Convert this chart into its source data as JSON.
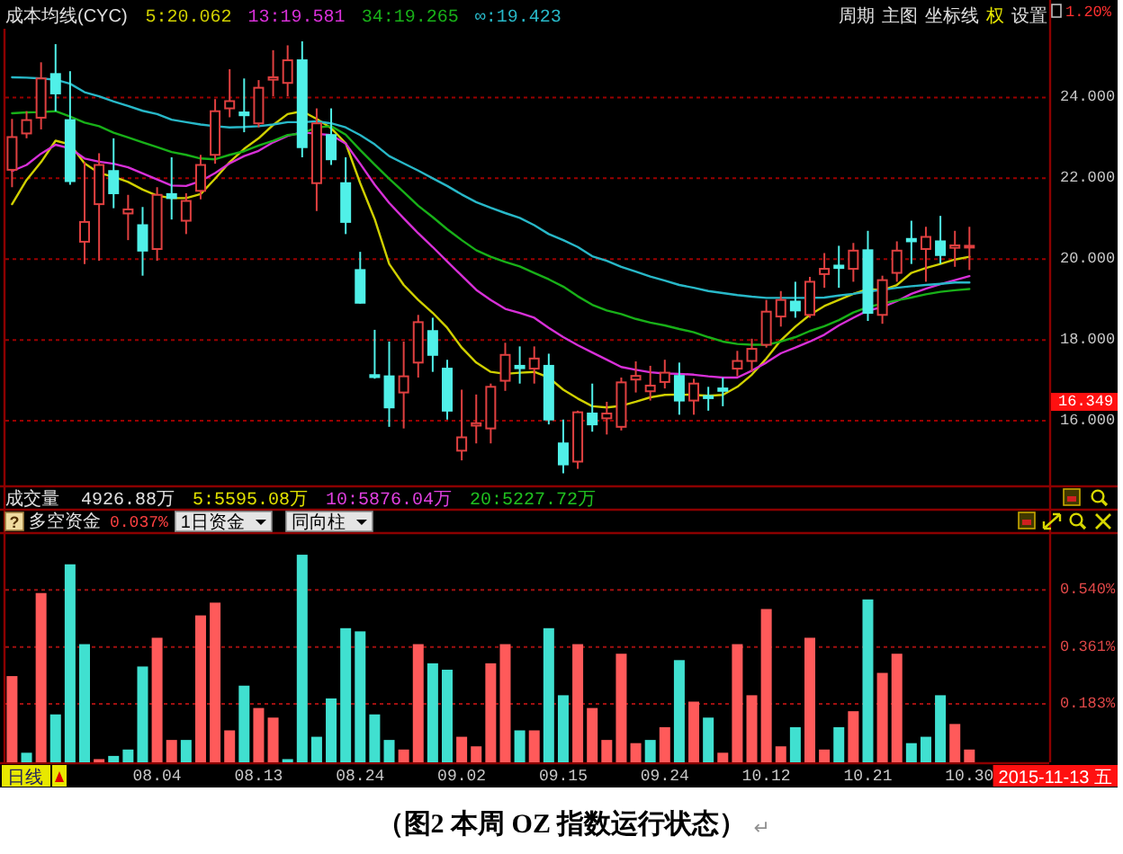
{
  "chart_data": [
    {
      "type": "candlestick",
      "title": "成本均线(CYC)",
      "legend": "top left",
      "grid": "y",
      "categories": [
        null,
        null,
        null,
        null,
        null,
        null,
        null,
        null,
        null,
        null,
        null,
        null,
        null,
        null,
        null,
        null,
        null,
        null,
        null,
        null,
        null,
        null,
        null,
        null,
        null,
        null,
        null,
        null,
        null,
        null,
        null,
        null,
        null,
        null,
        null,
        null,
        null,
        null,
        null,
        null,
        null,
        null,
        null,
        null,
        null,
        null,
        null,
        null,
        null,
        null,
        null,
        null,
        null,
        null,
        null,
        null,
        null,
        null,
        null,
        null,
        null,
        null,
        null,
        null,
        null,
        null,
        null
      ],
      "ohlc": [
        [
          22.21,
          23.47,
          21.78,
          23.02
        ],
        [
          23.11,
          23.66,
          22.99,
          23.44
        ],
        [
          23.5,
          24.87,
          23.21,
          24.47
        ],
        [
          24.58,
          25.32,
          23.66,
          24.1
        ],
        [
          23.44,
          24.65,
          21.84,
          21.93
        ],
        [
          20.43,
          22.4,
          19.88,
          20.92
        ],
        [
          21.36,
          22.62,
          19.96,
          22.33
        ],
        [
          22.18,
          22.99,
          21.26,
          21.63
        ],
        [
          21.13,
          21.59,
          20.47,
          21.23
        ],
        [
          20.84,
          21.29,
          19.59,
          20.21
        ],
        [
          20.25,
          21.78,
          19.96,
          21.59
        ],
        [
          21.61,
          22.52,
          20.98,
          21.51
        ],
        [
          20.95,
          21.63,
          20.62,
          21.44
        ],
        [
          21.69,
          22.58,
          21.48,
          22.33
        ],
        [
          22.58,
          23.96,
          22.36,
          23.66
        ],
        [
          23.73,
          24.7,
          23.51,
          23.91
        ],
        [
          23.63,
          24.47,
          23.14,
          23.56
        ],
        [
          23.36,
          24.43,
          23.26,
          24.24
        ],
        [
          24.44,
          25.17,
          24.03,
          24.5
        ],
        [
          24.36,
          25.29,
          24.03,
          24.92
        ],
        [
          24.92,
          25.39,
          22.52,
          22.77
        ],
        [
          21.88,
          23.73,
          21.19,
          23.36
        ],
        [
          23.07,
          23.73,
          22.33,
          22.47
        ],
        [
          21.88,
          22.52,
          20.62,
          20.92
        ],
        [
          19.73,
          20.18,
          18.9,
          18.92
        ],
        [
          17.13,
          18.25,
          17.04,
          17.08
        ],
        [
          17.1,
          17.96,
          15.85,
          16.33
        ],
        [
          16.7,
          17.96,
          15.81,
          17.1
        ],
        [
          17.44,
          18.62,
          17.07,
          18.44
        ],
        [
          18.22,
          18.55,
          17.21,
          17.63
        ],
        [
          17.29,
          17.51,
          16.03,
          16.25
        ],
        [
          15.26,
          16.77,
          15.02,
          15.59
        ],
        [
          15.88,
          16.65,
          15.44,
          15.94
        ],
        [
          15.81,
          16.92,
          15.44,
          16.84
        ],
        [
          16.99,
          17.93,
          16.74,
          17.63
        ],
        [
          17.36,
          17.84,
          16.92,
          17.3
        ],
        [
          17.29,
          17.84,
          16.92,
          17.54
        ],
        [
          17.36,
          17.66,
          15.91,
          16.03
        ],
        [
          15.44,
          16.03,
          14.7,
          14.92
        ],
        [
          14.99,
          16.25,
          14.81,
          16.21
        ],
        [
          16.18,
          16.92,
          15.73,
          15.91
        ],
        [
          16.06,
          16.47,
          15.66,
          16.18
        ],
        [
          15.85,
          17.07,
          15.76,
          16.95
        ],
        [
          17.02,
          17.47,
          16.7,
          17.11
        ],
        [
          16.73,
          17.36,
          16.5,
          16.87
        ],
        [
          16.96,
          17.51,
          16.8,
          17.19
        ],
        [
          17.11,
          17.44,
          16.15,
          16.5
        ],
        [
          16.5,
          17.04,
          16.15,
          16.92
        ],
        [
          16.61,
          16.84,
          16.25,
          16.56
        ],
        [
          16.8,
          17.07,
          16.36,
          16.74
        ],
        [
          17.29,
          17.73,
          17.1,
          17.48
        ],
        [
          17.48,
          18.03,
          17.21,
          17.78
        ],
        [
          17.88,
          18.99,
          17.81,
          18.7
        ],
        [
          18.58,
          19.21,
          18.33,
          18.99
        ],
        [
          18.95,
          19.44,
          18.55,
          18.73
        ],
        [
          18.62,
          19.56,
          18.55,
          19.44
        ],
        [
          19.63,
          20.15,
          19.29,
          19.76
        ],
        [
          19.84,
          20.33,
          19.29,
          19.78
        ],
        [
          19.76,
          20.4,
          19.44,
          20.21
        ],
        [
          20.22,
          20.7,
          18.47,
          18.67
        ],
        [
          18.62,
          19.59,
          18.4,
          19.48
        ],
        [
          19.66,
          20.44,
          19.44,
          20.21
        ],
        [
          20.5,
          20.95,
          19.88,
          20.44
        ],
        [
          20.25,
          20.8,
          19.44,
          20.55
        ],
        [
          20.44,
          21.07,
          19.88,
          20.1
        ],
        [
          20.28,
          20.7,
          19.81,
          20.34
        ],
        [
          20.3,
          20.8,
          19.73,
          20.33
        ]
      ],
      "colors": [
        "#e04040",
        "#e04040",
        "#e04040",
        "#50f0e8",
        "#50f0e8",
        "#e04040",
        "#e04040",
        "#50f0e8",
        "#e04040",
        "#50f0e8",
        "#e04040",
        "#50f0e8",
        "#e04040",
        "#e04040",
        "#e04040",
        "#e04040",
        "#50f0e8",
        "#e04040",
        "#e04040",
        "#e04040",
        "#50f0e8",
        "#e04040",
        "#50f0e8",
        "#50f0e8",
        "#50f0e8",
        "#50f0e8",
        "#50f0e8",
        "#e04040",
        "#e04040",
        "#50f0e8",
        "#50f0e8",
        "#e04040",
        "#e04040",
        "#e04040",
        "#e04040",
        "#50f0e8",
        "#e04040",
        "#50f0e8",
        "#50f0e8",
        "#e04040",
        "#50f0e8",
        "#e04040",
        "#e04040",
        "#e04040",
        "#e04040",
        "#e04040",
        "#50f0e8",
        "#e04040",
        "#50f0e8",
        "#50f0e8",
        "#e04040",
        "#e04040",
        "#e04040",
        "#e04040",
        "#50f0e8",
        "#e04040",
        "#e04040",
        "#50f0e8",
        "#e04040",
        "#50f0e8",
        "#e04040",
        "#e04040",
        "#50f0e8",
        "#e04040",
        "#50f0e8",
        "#e04040",
        "#e04040"
      ],
      "series": [
        {
          "type": "line",
          "name": "5:20.062",
          "color": "#d0d000",
          "values": [
            21.36,
            21.96,
            22.4,
            22.93,
            22.84,
            22.37,
            22.13,
            22.04,
            21.91,
            21.72,
            21.57,
            21.51,
            21.51,
            21.61,
            21.99,
            22.4,
            22.73,
            22.99,
            23.32,
            23.59,
            23.66,
            23.47,
            23.24,
            22.87,
            21.88,
            20.99,
            19.88,
            19.36,
            18.99,
            18.67,
            18.3,
            17.81,
            17.44,
            17.21,
            17.16,
            17.19,
            17.21,
            17.07,
            16.77,
            16.55,
            16.36,
            16.33,
            16.37,
            16.47,
            16.58,
            16.64,
            16.65,
            16.64,
            16.62,
            16.64,
            16.84,
            17.14,
            17.54,
            17.99,
            18.33,
            18.62,
            18.84,
            18.99,
            19.14,
            19.26,
            19.23,
            19.36,
            19.66,
            19.78,
            19.88,
            19.99,
            20.06
          ]
        },
        {
          "type": "line",
          "name": "13:19.581",
          "color": "#d830d8",
          "values": [
            22.18,
            22.33,
            22.61,
            22.83,
            22.74,
            22.49,
            22.41,
            22.36,
            22.27,
            22.12,
            21.97,
            21.82,
            21.81,
            21.93,
            22.13,
            22.37,
            22.55,
            22.68,
            22.89,
            23.05,
            23.14,
            23.1,
            23.07,
            22.86,
            22.36,
            21.84,
            21.39,
            21.01,
            20.64,
            20.3,
            19.94,
            19.59,
            19.24,
            18.99,
            18.77,
            18.67,
            18.55,
            18.3,
            18.07,
            17.87,
            17.69,
            17.51,
            17.33,
            17.26,
            17.2,
            17.17,
            17.16,
            17.14,
            17.1,
            17.07,
            17.07,
            17.24,
            17.44,
            17.67,
            17.81,
            17.96,
            18.13,
            18.36,
            18.55,
            18.73,
            18.81,
            18.96,
            19.14,
            19.27,
            19.38,
            19.48,
            19.58
          ]
        },
        {
          "type": "line",
          "name": "34:19.265",
          "color": "#18b018",
          "values": [
            23.61,
            23.63,
            23.64,
            23.66,
            23.53,
            23.38,
            23.29,
            23.13,
            23.01,
            22.89,
            22.77,
            22.65,
            22.58,
            22.49,
            22.47,
            22.58,
            22.67,
            22.81,
            22.93,
            23.07,
            23.11,
            23.26,
            23.29,
            23.08,
            22.7,
            22.34,
            21.99,
            21.66,
            21.32,
            21.04,
            20.74,
            20.47,
            20.22,
            20.06,
            19.93,
            19.82,
            19.66,
            19.5,
            19.32,
            19.08,
            18.87,
            18.73,
            18.64,
            18.52,
            18.43,
            18.36,
            18.27,
            18.19,
            18.07,
            17.96,
            17.9,
            17.88,
            17.88,
            17.96,
            18.07,
            18.22,
            18.34,
            18.49,
            18.68,
            18.81,
            18.9,
            18.98,
            19.05,
            19.13,
            19.19,
            19.23,
            19.26
          ]
        },
        {
          "type": "line",
          "name": "∞:19.423",
          "color": "#28b8c8",
          "values": [
            24.5,
            24.49,
            24.47,
            24.44,
            24.34,
            24.13,
            24.03,
            23.9,
            23.79,
            23.67,
            23.59,
            23.45,
            23.39,
            23.33,
            23.29,
            23.26,
            23.27,
            23.29,
            23.33,
            23.39,
            23.39,
            23.41,
            23.36,
            23.26,
            23.07,
            22.84,
            22.55,
            22.37,
            22.19,
            22.0,
            21.81,
            21.6,
            21.41,
            21.27,
            21.14,
            21.02,
            20.84,
            20.62,
            20.47,
            20.3,
            20.07,
            19.96,
            19.81,
            19.69,
            19.57,
            19.47,
            19.36,
            19.29,
            19.21,
            19.16,
            19.11,
            19.07,
            19.04,
            19.04,
            19.04,
            19.04,
            19.05,
            19.1,
            19.14,
            19.2,
            19.24,
            19.29,
            19.33,
            19.36,
            19.39,
            19.42,
            19.42
          ]
        }
      ],
      "ylim": [
        14.4,
        25.7
      ],
      "yticks": [
        {
          "value": 16,
          "label": "16.000"
        },
        {
          "value": 18,
          "label": "18.000"
        },
        {
          "value": 20,
          "label": "20.000"
        },
        {
          "value": 22,
          "label": "22.000"
        },
        {
          "value": 24,
          "label": "24.000"
        }
      ],
      "annotations": [
        "周期",
        "主图",
        "坐标线",
        "权",
        "设置",
        "1.20%",
        "16.349"
      ]
    },
    {
      "type": "bar",
      "title": "多空资金",
      "grid": "y",
      "categories": [
        null,
        null,
        null,
        null,
        null,
        null,
        null,
        null,
        null,
        null,
        "08.04",
        null,
        null,
        null,
        null,
        null,
        null,
        "08.13",
        null,
        null,
        null,
        null,
        null,
        null,
        "08.24",
        null,
        null,
        null,
        null,
        null,
        null,
        "09.02",
        null,
        null,
        null,
        null,
        null,
        null,
        "09.15",
        null,
        null,
        null,
        null,
        null,
        null,
        "09.24",
        null,
        null,
        null,
        null,
        null,
        null,
        "10.12",
        null,
        null,
        null,
        null,
        null,
        null,
        "10.21",
        null,
        null,
        null,
        null,
        null,
        null,
        "10.30"
      ],
      "values": [
        0.27,
        0.03,
        0.53,
        0.15,
        0.62,
        0.37,
        0.01,
        0.02,
        0.04,
        0.3,
        0.39,
        0.07,
        0.07,
        0.46,
        0.5,
        0.1,
        0.24,
        0.17,
        0.14,
        0.01,
        0.65,
        0.08,
        0.2,
        0.42,
        0.41,
        0.15,
        0.07,
        0.04,
        0.37,
        0.31,
        0.29,
        0.08,
        0.05,
        0.31,
        0.37,
        0.1,
        0.1,
        0.42,
        0.21,
        0.37,
        0.17,
        0.07,
        0.34,
        0.06,
        0.07,
        0.11,
        0.32,
        0.19,
        0.14,
        0.03,
        0.37,
        0.21,
        0.48,
        0.05,
        0.11,
        0.39,
        0.04,
        0.11,
        0.16,
        0.51,
        0.28,
        0.34,
        0.06,
        0.08,
        0.21,
        0.12,
        0.04
      ],
      "colors": [
        "#ff5a5a",
        "#40e0d0",
        "#ff5a5a",
        "#40e0d0",
        "#40e0d0",
        "#40e0d0",
        "#ff5a5a",
        "#40e0d0",
        "#40e0d0",
        "#40e0d0",
        "#ff5a5a",
        "#ff5a5a",
        "#40e0d0",
        "#ff5a5a",
        "#ff5a5a",
        "#ff5a5a",
        "#40e0d0",
        "#ff5a5a",
        "#ff5a5a",
        "#40e0d0",
        "#40e0d0",
        "#40e0d0",
        "#40e0d0",
        "#40e0d0",
        "#40e0d0",
        "#40e0d0",
        "#40e0d0",
        "#ff5a5a",
        "#ff5a5a",
        "#40e0d0",
        "#40e0d0",
        "#ff5a5a",
        "#ff5a5a",
        "#ff5a5a",
        "#ff5a5a",
        "#40e0d0",
        "#ff5a5a",
        "#40e0d0",
        "#40e0d0",
        "#ff5a5a",
        "#ff5a5a",
        "#ff5a5a",
        "#ff5a5a",
        "#ff5a5a",
        "#40e0d0",
        "#ff5a5a",
        "#40e0d0",
        "#ff5a5a",
        "#40e0d0",
        "#ff5a5a",
        "#ff5a5a",
        "#ff5a5a",
        "#ff5a5a",
        "#ff5a5a",
        "#40e0d0",
        "#ff5a5a",
        "#ff5a5a",
        "#40e0d0",
        "#ff5a5a",
        "#40e0d0",
        "#ff5a5a",
        "#ff5a5a",
        "#40e0d0",
        "#40e0d0",
        "#40e0d0",
        "#ff5a5a",
        "#ff5a5a"
      ],
      "ylim": [
        0,
        0.715
      ],
      "yticks": [
        {
          "value": 0.183,
          "label": "0.183%"
        },
        {
          "value": 0.361,
          "label": "0.361%"
        },
        {
          "value": 0.54,
          "label": "0.540%"
        }
      ],
      "annotations": [
        "成交量",
        "4926.88万",
        "5:5595.08万",
        "10:5876.04万",
        "20:5227.72万",
        "?",
        "0.037%",
        "1日资金",
        "同向柱",
        "日线",
        "2015-11-13 五",
        "（图2 本周 OZ 指数运行状态）",
        "↵"
      ]
    }
  ]
}
